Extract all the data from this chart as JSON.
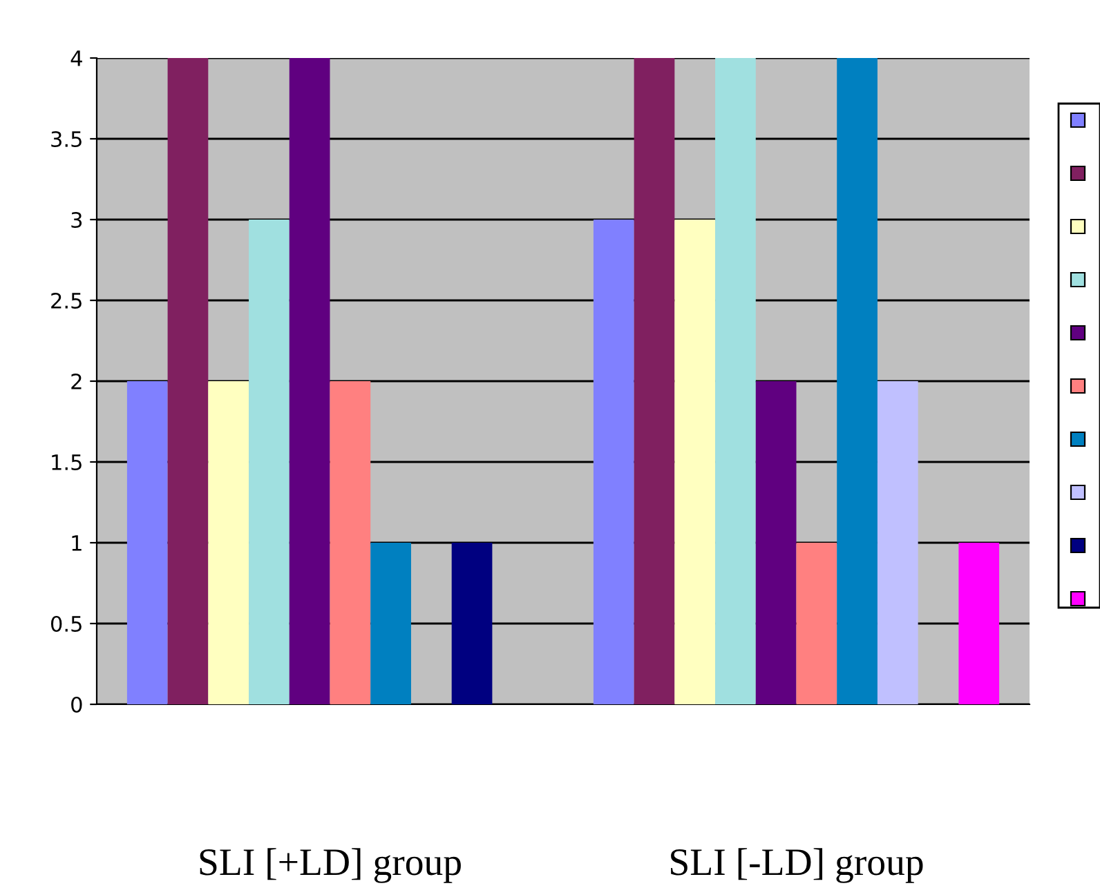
{
  "chart_data": {
    "type": "bar",
    "categories": [
      "SLI [+LD] group",
      "SLI [-LD] group"
    ],
    "series": [
      {
        "color": "#8080ff",
        "values": [
          2,
          3
        ]
      },
      {
        "color": "#802060",
        "values": [
          4,
          4
        ]
      },
      {
        "color": "#ffffc0",
        "values": [
          2,
          3
        ]
      },
      {
        "color": "#a0e0e0",
        "values": [
          3,
          4
        ]
      },
      {
        "color": "#600080",
        "values": [
          4,
          2
        ]
      },
      {
        "color": "#ff8080",
        "values": [
          2,
          1
        ]
      },
      {
        "color": "#0080c0",
        "values": [
          1,
          4
        ]
      },
      {
        "color": "#c0c0ff",
        "values": [
          0,
          2
        ]
      },
      {
        "color": "#000080",
        "values": [
          1,
          0
        ]
      },
      {
        "color": "#ff00ff",
        "values": [
          0,
          1
        ]
      }
    ],
    "ylim": [
      0,
      4
    ],
    "yticks": [
      0,
      0.5,
      1,
      1.5,
      2,
      2.5,
      3,
      3.5,
      4
    ],
    "grid": "y"
  }
}
